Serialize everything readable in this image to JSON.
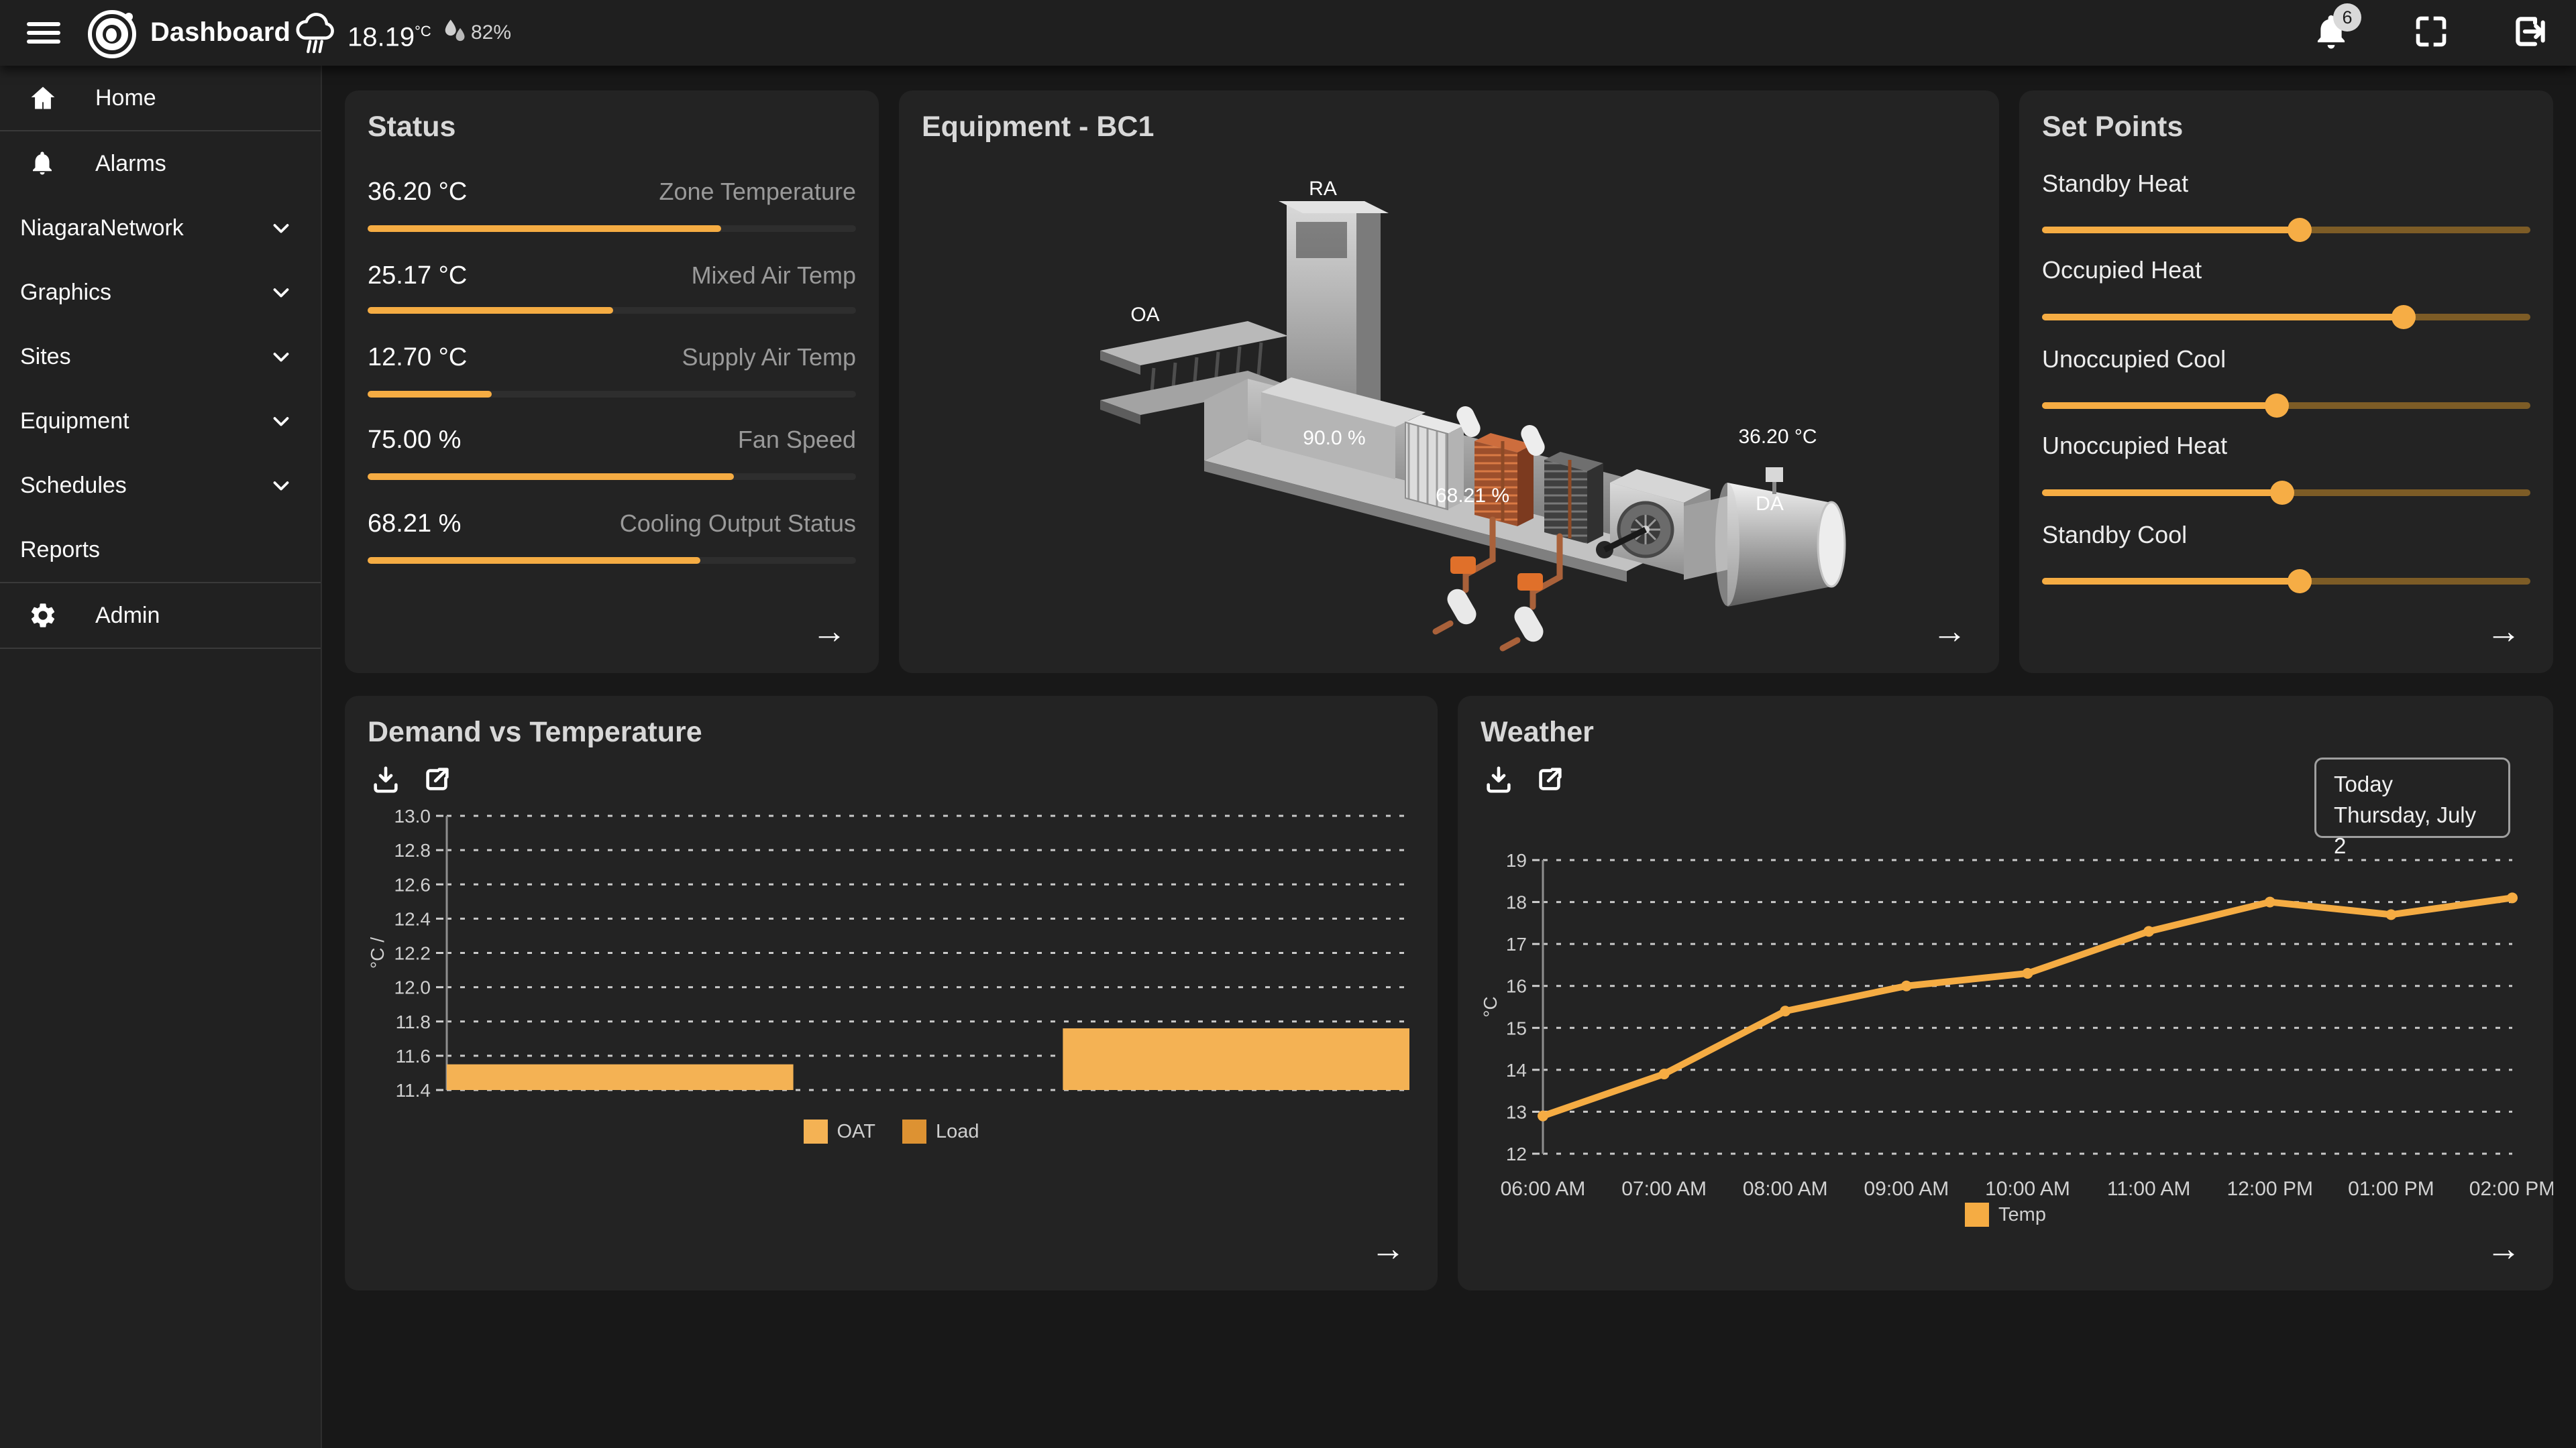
{
  "ui": {
    "arrow": "→"
  },
  "topbar": {
    "title": "Dashboard",
    "temperature": "18.19",
    "temperature_unit": "°C",
    "humidity": "82%",
    "notification_count": "6",
    "icons": [
      "menu",
      "brand-logo",
      "weather-cloud-rain",
      "humidity-drops",
      "notifications-bell",
      "fullscreen",
      "logout"
    ]
  },
  "sidebar": {
    "items": [
      {
        "label": "Home",
        "icon": "home-icon",
        "divider_after": true
      },
      {
        "label": "Alarms",
        "icon": "bell-icon"
      },
      {
        "label": "NiagaraNetwork",
        "expandable": true
      },
      {
        "label": "Graphics",
        "expandable": true
      },
      {
        "label": "Sites",
        "expandable": true
      },
      {
        "label": "Equipment",
        "expandable": true
      },
      {
        "label": "Schedules",
        "expandable": true
      },
      {
        "label": "Reports",
        "divider_after": true
      },
      {
        "label": "Admin",
        "icon": "gear-icon",
        "divider_after": true
      }
    ]
  },
  "status_card": {
    "title": "Status",
    "metrics": [
      {
        "value": "36.20 °C",
        "label": "Zone Temperature",
        "percent": 72.4
      },
      {
        "value": "25.17 °C",
        "label": "Mixed Air Temp",
        "percent": 50.3
      },
      {
        "value": "12.70 °C",
        "label": "Supply Air Temp",
        "percent": 25.4
      },
      {
        "value": "75.00 %",
        "label": "Fan Speed",
        "percent": 75.0
      },
      {
        "value": "68.21 %",
        "label": "Cooling Output Status",
        "percent": 68.2
      }
    ]
  },
  "equipment_card": {
    "title": "Equipment - BC1",
    "labels": {
      "return_air": "RA",
      "outside_air": "OA",
      "heating_valve": "90.0 %",
      "cooling_valve": "68.21 %",
      "discharge_temp": "36.20 °C",
      "discharge_air": "DA"
    }
  },
  "setpoints_card": {
    "title": "Set Points",
    "sliders": [
      {
        "label": "Standby Heat",
        "percent": 52.8
      },
      {
        "label": "Occupied Heat",
        "percent": 74.0
      },
      {
        "label": "Unoccupied Cool",
        "percent": 48.1
      },
      {
        "label": "Unoccupied Heat",
        "percent": 49.2
      },
      {
        "label": "Standby Cool",
        "percent": 52.8
      }
    ]
  },
  "weather_card": {
    "today_label": "Today",
    "today_date": "Thursday, July 2",
    "icons": [
      "download",
      "open-external"
    ]
  },
  "demand_card": {
    "icons": [
      "download",
      "open-external"
    ]
  },
  "chart_data": [
    {
      "type": "bar",
      "title": "Demand vs Temperature",
      "xlabel": "",
      "ylabel": "°C /",
      "ylim": [
        11.4,
        13.0
      ],
      "ytick_step": 0.2,
      "grid": "dashed",
      "legend_position": "bottom",
      "series": [
        {
          "name": "OAT",
          "value": 11.55,
          "span": [
            0.0,
            0.36
          ],
          "color": "#f4b254"
        },
        {
          "name": "Load",
          "value": 11.76,
          "span": [
            0.64,
            1.0
          ],
          "color": "#f4b254"
        }
      ],
      "legend": [
        {
          "label": "OAT",
          "color": "#f4b254"
        },
        {
          "label": "Load",
          "color": "#dd9232"
        }
      ]
    },
    {
      "type": "line",
      "title": "Weather",
      "xlabel": "",
      "ylabel": "°C",
      "ylim": [
        12,
        19
      ],
      "ytick_step": 1,
      "grid": "dashed",
      "legend_position": "bottom",
      "x": [
        "06:00 AM",
        "07:00 AM",
        "08:00 AM",
        "09:00 AM",
        "10:00 AM",
        "11:00 AM",
        "12:00 PM",
        "01:00 PM",
        "02:00 PM"
      ],
      "series": [
        {
          "name": "Temp",
          "values": [
            12.9,
            13.9,
            15.4,
            16.0,
            16.3,
            17.3,
            18.0,
            17.7,
            18.1
          ],
          "color": "#f5ac43"
        }
      ],
      "legend": [
        {
          "label": "Temp",
          "color": "#f5ac43"
        }
      ]
    }
  ]
}
